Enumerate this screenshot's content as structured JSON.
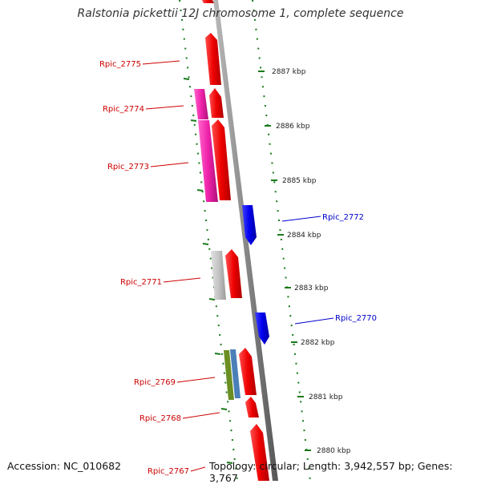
{
  "title": "Ralstonia pickettii 12J chromosome 1, complete sequence",
  "footer": {
    "accession": "Accession: NC_010682",
    "summary": "Topology: circular; Length: 3,942,557 bp; Genes: 3,767"
  },
  "colors": {
    "background": "#ffffff",
    "backbone": "#8c8c8c",
    "forward_label": "#cc0000",
    "reverse_label": "#0000cc",
    "tick": "#1a7a1a",
    "gene_red": "#ee0000",
    "gene_blue": "#0000ee",
    "gene_magenta": "#ee22aa",
    "gene_grey": "#c4c4c4",
    "gene_olive": "#6b8e23",
    "gene_steelblue": "#4a7fb8"
  },
  "genes": [
    {
      "id": "Rpic_2775",
      "strand": "forward"
    },
    {
      "id": "Rpic_2774",
      "strand": "forward"
    },
    {
      "id": "Rpic_2773",
      "strand": "forward"
    },
    {
      "id": "Rpic_2772",
      "strand": "reverse"
    },
    {
      "id": "Rpic_2771",
      "strand": "forward"
    },
    {
      "id": "Rpic_2770",
      "strand": "reverse"
    },
    {
      "id": "Rpic_2769",
      "strand": "forward"
    },
    {
      "id": "Rpic_2768",
      "strand": "forward"
    },
    {
      "id": "Rpic_2767",
      "strand": "forward"
    }
  ],
  "scale_ticks": [
    "2887 kbp",
    "2886 kbp",
    "2885 kbp",
    "2884 kbp",
    "2883 kbp",
    "2882 kbp",
    "2881 kbp",
    "2880 kbp"
  ]
}
